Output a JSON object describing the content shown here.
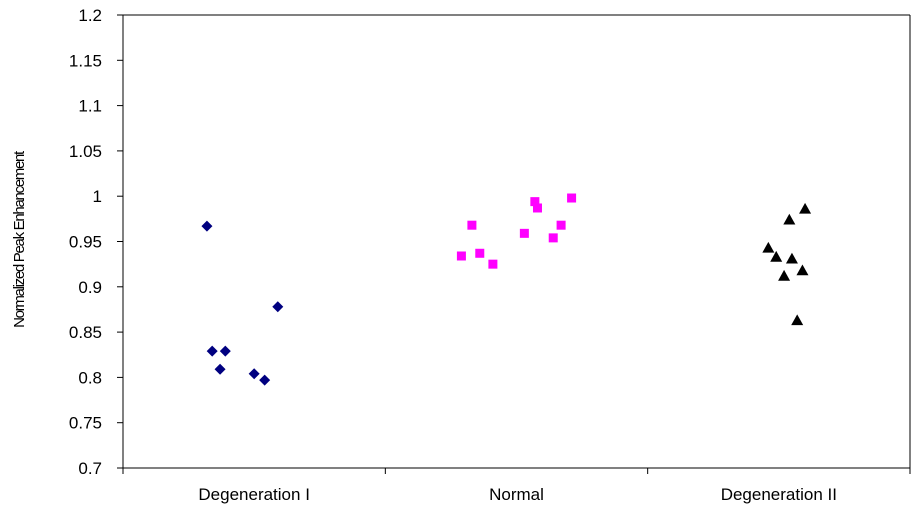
{
  "chart_data": {
    "type": "scatter",
    "title": "",
    "xlabel": "",
    "ylabel": "Normalized Peak Enhancement",
    "ylim": [
      0.7,
      1.2
    ],
    "yticks": [
      "0.7",
      "0.75",
      "0.8",
      "0.85",
      "0.9",
      "0.95",
      "1",
      "1.05",
      "1.1",
      "1.15",
      "1.2"
    ],
    "grid": false,
    "legend": "none",
    "categories": [
      "Degeneration I",
      "Normal",
      "Degeneration II"
    ],
    "series": [
      {
        "category": "Degeneration I",
        "marker": "diamond",
        "color": "#000080",
        "points": [
          {
            "jitter": -0.18,
            "y": 0.967
          },
          {
            "jitter": 0.09,
            "y": 0.878
          },
          {
            "jitter": -0.16,
            "y": 0.829
          },
          {
            "jitter": -0.11,
            "y": 0.829
          },
          {
            "jitter": -0.13,
            "y": 0.809
          },
          {
            "jitter": 0.0,
            "y": 0.804
          },
          {
            "jitter": 0.04,
            "y": 0.797
          }
        ]
      },
      {
        "category": "Normal",
        "marker": "square",
        "color": "#ff00ff",
        "points": [
          {
            "jitter": 0.21,
            "y": 0.998
          },
          {
            "jitter": 0.07,
            "y": 0.994
          },
          {
            "jitter": 0.08,
            "y": 0.987
          },
          {
            "jitter": -0.17,
            "y": 0.968
          },
          {
            "jitter": 0.17,
            "y": 0.968
          },
          {
            "jitter": 0.03,
            "y": 0.959
          },
          {
            "jitter": 0.14,
            "y": 0.954
          },
          {
            "jitter": -0.14,
            "y": 0.937
          },
          {
            "jitter": -0.21,
            "y": 0.934
          },
          {
            "jitter": -0.09,
            "y": 0.925
          }
        ]
      },
      {
        "category": "Degeneration II",
        "marker": "triangle",
        "color": "#000000",
        "points": [
          {
            "jitter": 0.1,
            "y": 0.986
          },
          {
            "jitter": 0.04,
            "y": 0.974
          },
          {
            "jitter": -0.04,
            "y": 0.943
          },
          {
            "jitter": -0.01,
            "y": 0.933
          },
          {
            "jitter": 0.05,
            "y": 0.931
          },
          {
            "jitter": 0.09,
            "y": 0.918
          },
          {
            "jitter": 0.02,
            "y": 0.912
          },
          {
            "jitter": 0.07,
            "y": 0.863
          }
        ]
      }
    ]
  }
}
